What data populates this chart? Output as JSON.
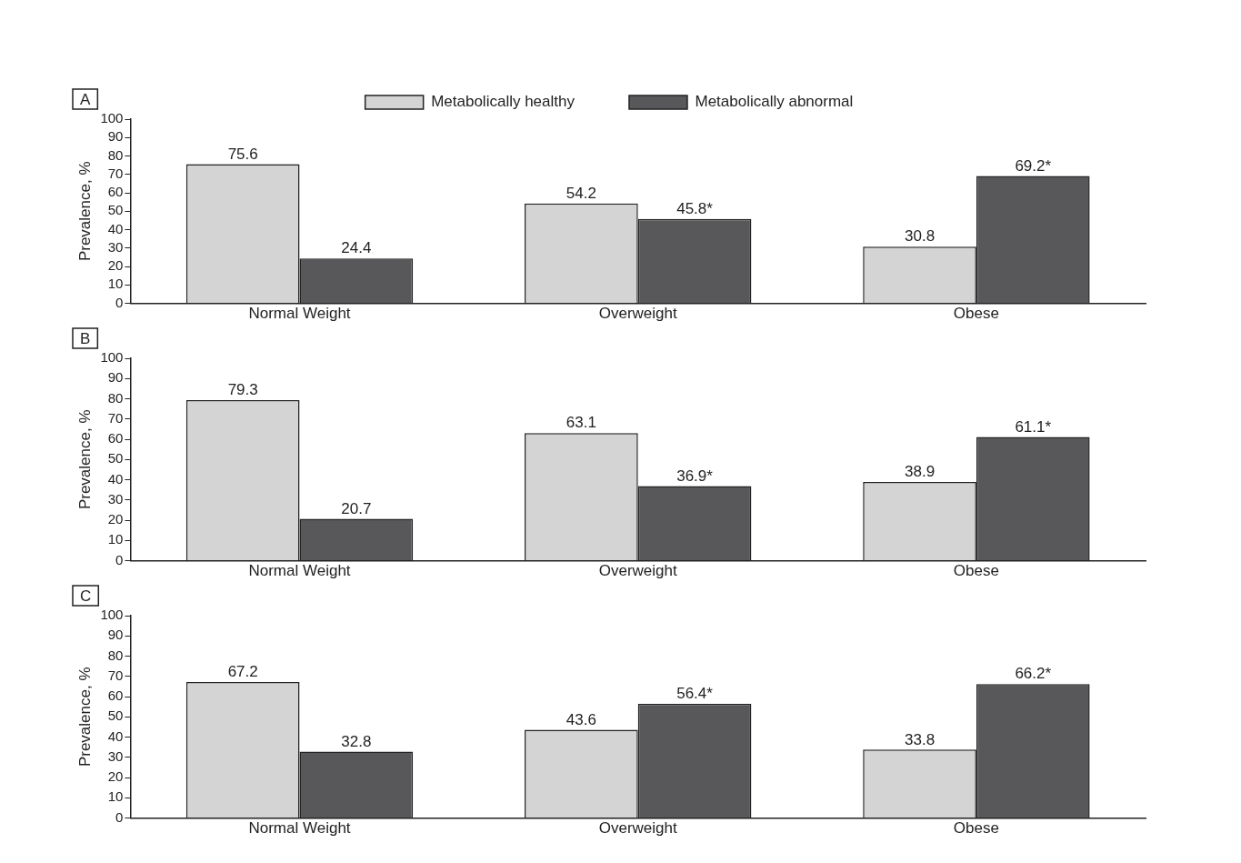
{
  "chart_data": [
    {
      "type": "bar",
      "title": "A",
      "ylabel": "Prevalence, %",
      "categories": [
        "Normal Weight",
        "Overweight",
        "Obese"
      ],
      "series": [
        {
          "name": "Metabolically healthy",
          "color": "#d4d4d4",
          "values": [
            75.6,
            54.2,
            30.8
          ],
          "value_labels": [
            "75.6",
            "54.2",
            "30.8"
          ]
        },
        {
          "name": "Metabolically abnormal",
          "color": "#58585a",
          "values": [
            24.4,
            45.8,
            69.2
          ],
          "value_labels": [
            "24.4",
            "45.8*",
            "69.2*"
          ]
        }
      ],
      "ylim": [
        0,
        100
      ],
      "yticks": [
        0,
        10,
        20,
        30,
        40,
        50,
        60,
        70,
        80,
        90,
        100
      ],
      "grid": false,
      "legend": "top"
    },
    {
      "type": "bar",
      "title": "B",
      "ylabel": "Prevalence, %",
      "categories": [
        "Normal Weight",
        "Overweight",
        "Obese"
      ],
      "series": [
        {
          "color": "#d4d4d4",
          "values": [
            79.3,
            63.1,
            38.9
          ],
          "value_labels": [
            "79.3",
            "63.1",
            "38.9"
          ]
        },
        {
          "color": "#58585a",
          "values": [
            20.7,
            36.9,
            61.1
          ],
          "value_labels": [
            "20.7",
            "36.9*",
            "61.1*"
          ]
        }
      ],
      "ylim": [
        0,
        100
      ],
      "yticks": [
        0,
        10,
        20,
        30,
        40,
        50,
        60,
        70,
        80,
        90,
        100
      ],
      "grid": false
    },
    {
      "type": "bar",
      "title": "C",
      "ylabel": "Prevalence, %",
      "categories": [
        "Normal Weight",
        "Overweight",
        "Obese"
      ],
      "series": [
        {
          "color": "#d4d4d4",
          "values": [
            67.2,
            43.6,
            33.8
          ],
          "value_labels": [
            "67.2",
            "43.6",
            "33.8"
          ]
        },
        {
          "color": "#58585a",
          "values": [
            32.8,
            56.4,
            66.2
          ],
          "value_labels": [
            "32.8",
            "56.4*",
            "66.2*"
          ]
        }
      ],
      "ylim": [
        0,
        100
      ],
      "yticks": [
        0,
        10,
        20,
        30,
        40,
        50,
        60,
        70,
        80,
        90,
        100
      ],
      "grid": false
    }
  ]
}
